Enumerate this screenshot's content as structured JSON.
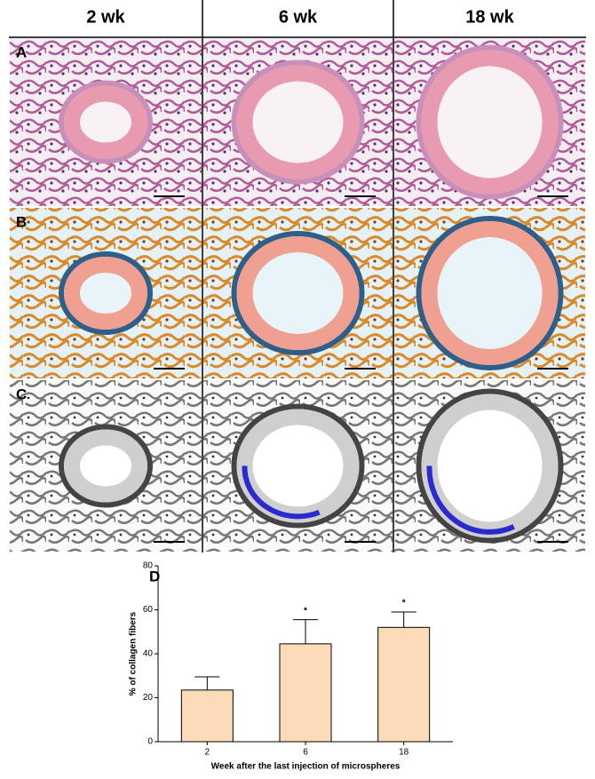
{
  "columns": [
    "2 wk",
    "6 wk",
    "18 wk"
  ],
  "rows": [
    "A",
    "B",
    "C"
  ],
  "chart_label": "D",
  "chart_data": {
    "type": "bar",
    "categories": [
      "2",
      "6",
      "18"
    ],
    "values": [
      23.5,
      44.5,
      52
    ],
    "errors": [
      6,
      11,
      7
    ],
    "color": "#fcdcb8",
    "annotations": [
      {
        "category": "6",
        "text": "*"
      },
      {
        "category": "18",
        "text": "*"
      }
    ],
    "ylabel": "% of collagen fibers",
    "xlabel": "Week after the last injection of microspheres",
    "ylim": [
      0,
      80
    ],
    "yticks": [
      0,
      20,
      40,
      60,
      80
    ]
  }
}
